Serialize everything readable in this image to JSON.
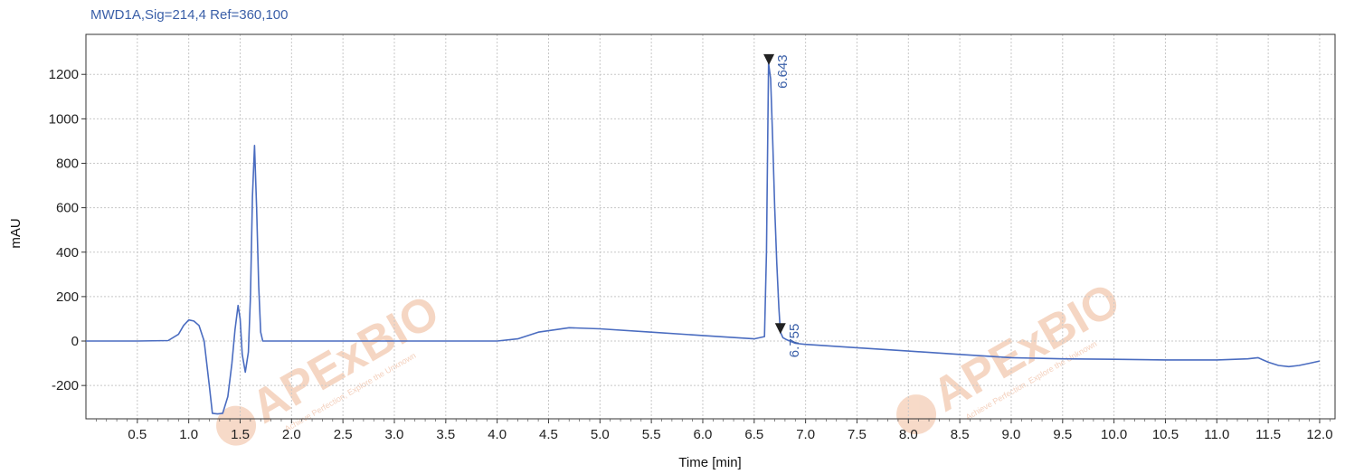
{
  "chart_data": {
    "type": "line",
    "title": "MWD1A,Sig=214,4  Ref=360,100",
    "xlabel": "Time [min]",
    "ylabel": "mAU",
    "xlim": [
      0,
      12.15
    ],
    "ylim": [
      -350,
      1380
    ],
    "x_ticks": [
      0.5,
      1.0,
      1.5,
      2.0,
      2.5,
      3.0,
      3.5,
      4.0,
      4.5,
      5.0,
      5.5,
      6.0,
      6.5,
      7.0,
      7.5,
      8.0,
      8.5,
      9.0,
      9.5,
      10.0,
      10.5,
      11.0,
      11.5,
      12.0
    ],
    "x_tick_labels": [
      "0.5",
      "1.0",
      "1.5",
      "2.0",
      "2.5",
      "3.0",
      "3.5",
      "4.0",
      "4.5",
      "5.0",
      "5.5",
      "6.0",
      "6.5",
      "7.0",
      "7.5",
      "8.0",
      "8.5",
      "9.0",
      "9.5",
      "10.0",
      "10.5",
      "11.0",
      "11.5",
      "12.0"
    ],
    "y_ticks": [
      -200,
      0,
      200,
      400,
      600,
      800,
      1000,
      1200
    ],
    "y_tick_labels": [
      "-200",
      "0",
      "200",
      "400",
      "600",
      "800",
      "1000",
      "1200"
    ],
    "grid": true,
    "line_color": "#4a6cc0",
    "series": [
      {
        "x": [
          0.0,
          0.5,
          0.8,
          0.9,
          0.95,
          1.0,
          1.05,
          1.1,
          1.15,
          1.2,
          1.23,
          1.28,
          1.33,
          1.38,
          1.42,
          1.45,
          1.48,
          1.5,
          1.52,
          1.55,
          1.58,
          1.6,
          1.62,
          1.64,
          1.66,
          1.68,
          1.7,
          1.72,
          1.74,
          1.78,
          1.85,
          2.0,
          3.0,
          4.0,
          4.2,
          4.4,
          4.7,
          5.0,
          5.5,
          6.0,
          6.5,
          6.6,
          6.62,
          6.64,
          6.66,
          6.68,
          6.7,
          6.72,
          6.74,
          6.755,
          6.78,
          6.82,
          6.9,
          7.0,
          7.5,
          8.0,
          8.5,
          9.0,
          9.5,
          10.0,
          10.5,
          11.0,
          11.3,
          11.4,
          11.5,
          11.6,
          11.7,
          11.8,
          11.9,
          12.0
        ],
        "y": [
          0,
          0,
          2,
          30,
          70,
          95,
          90,
          70,
          0,
          -200,
          -325,
          -328,
          -325,
          -250,
          -100,
          50,
          160,
          100,
          -60,
          -140,
          -50,
          200,
          650,
          880,
          600,
          250,
          40,
          0,
          0,
          0,
          0,
          0,
          0,
          0,
          10,
          40,
          60,
          55,
          40,
          25,
          10,
          20,
          400,
          1250,
          1180,
          900,
          600,
          350,
          150,
          40,
          15,
          5,
          -10,
          -15,
          -30,
          -45,
          -60,
          -75,
          -80,
          -82,
          -85,
          -85,
          -80,
          -75,
          -95,
          -110,
          -115,
          -110,
          -100,
          -90
        ]
      }
    ],
    "peak_annotations": [
      {
        "label": "6.643",
        "x": 6.643,
        "y": 1250
      },
      {
        "label": "6.755",
        "x": 6.755,
        "y": 40
      }
    ]
  },
  "watermark": {
    "brand": "APExBIO",
    "tagline": "Achieve Perfection, Explore the Unknown",
    "color": "#f2c9b0"
  }
}
